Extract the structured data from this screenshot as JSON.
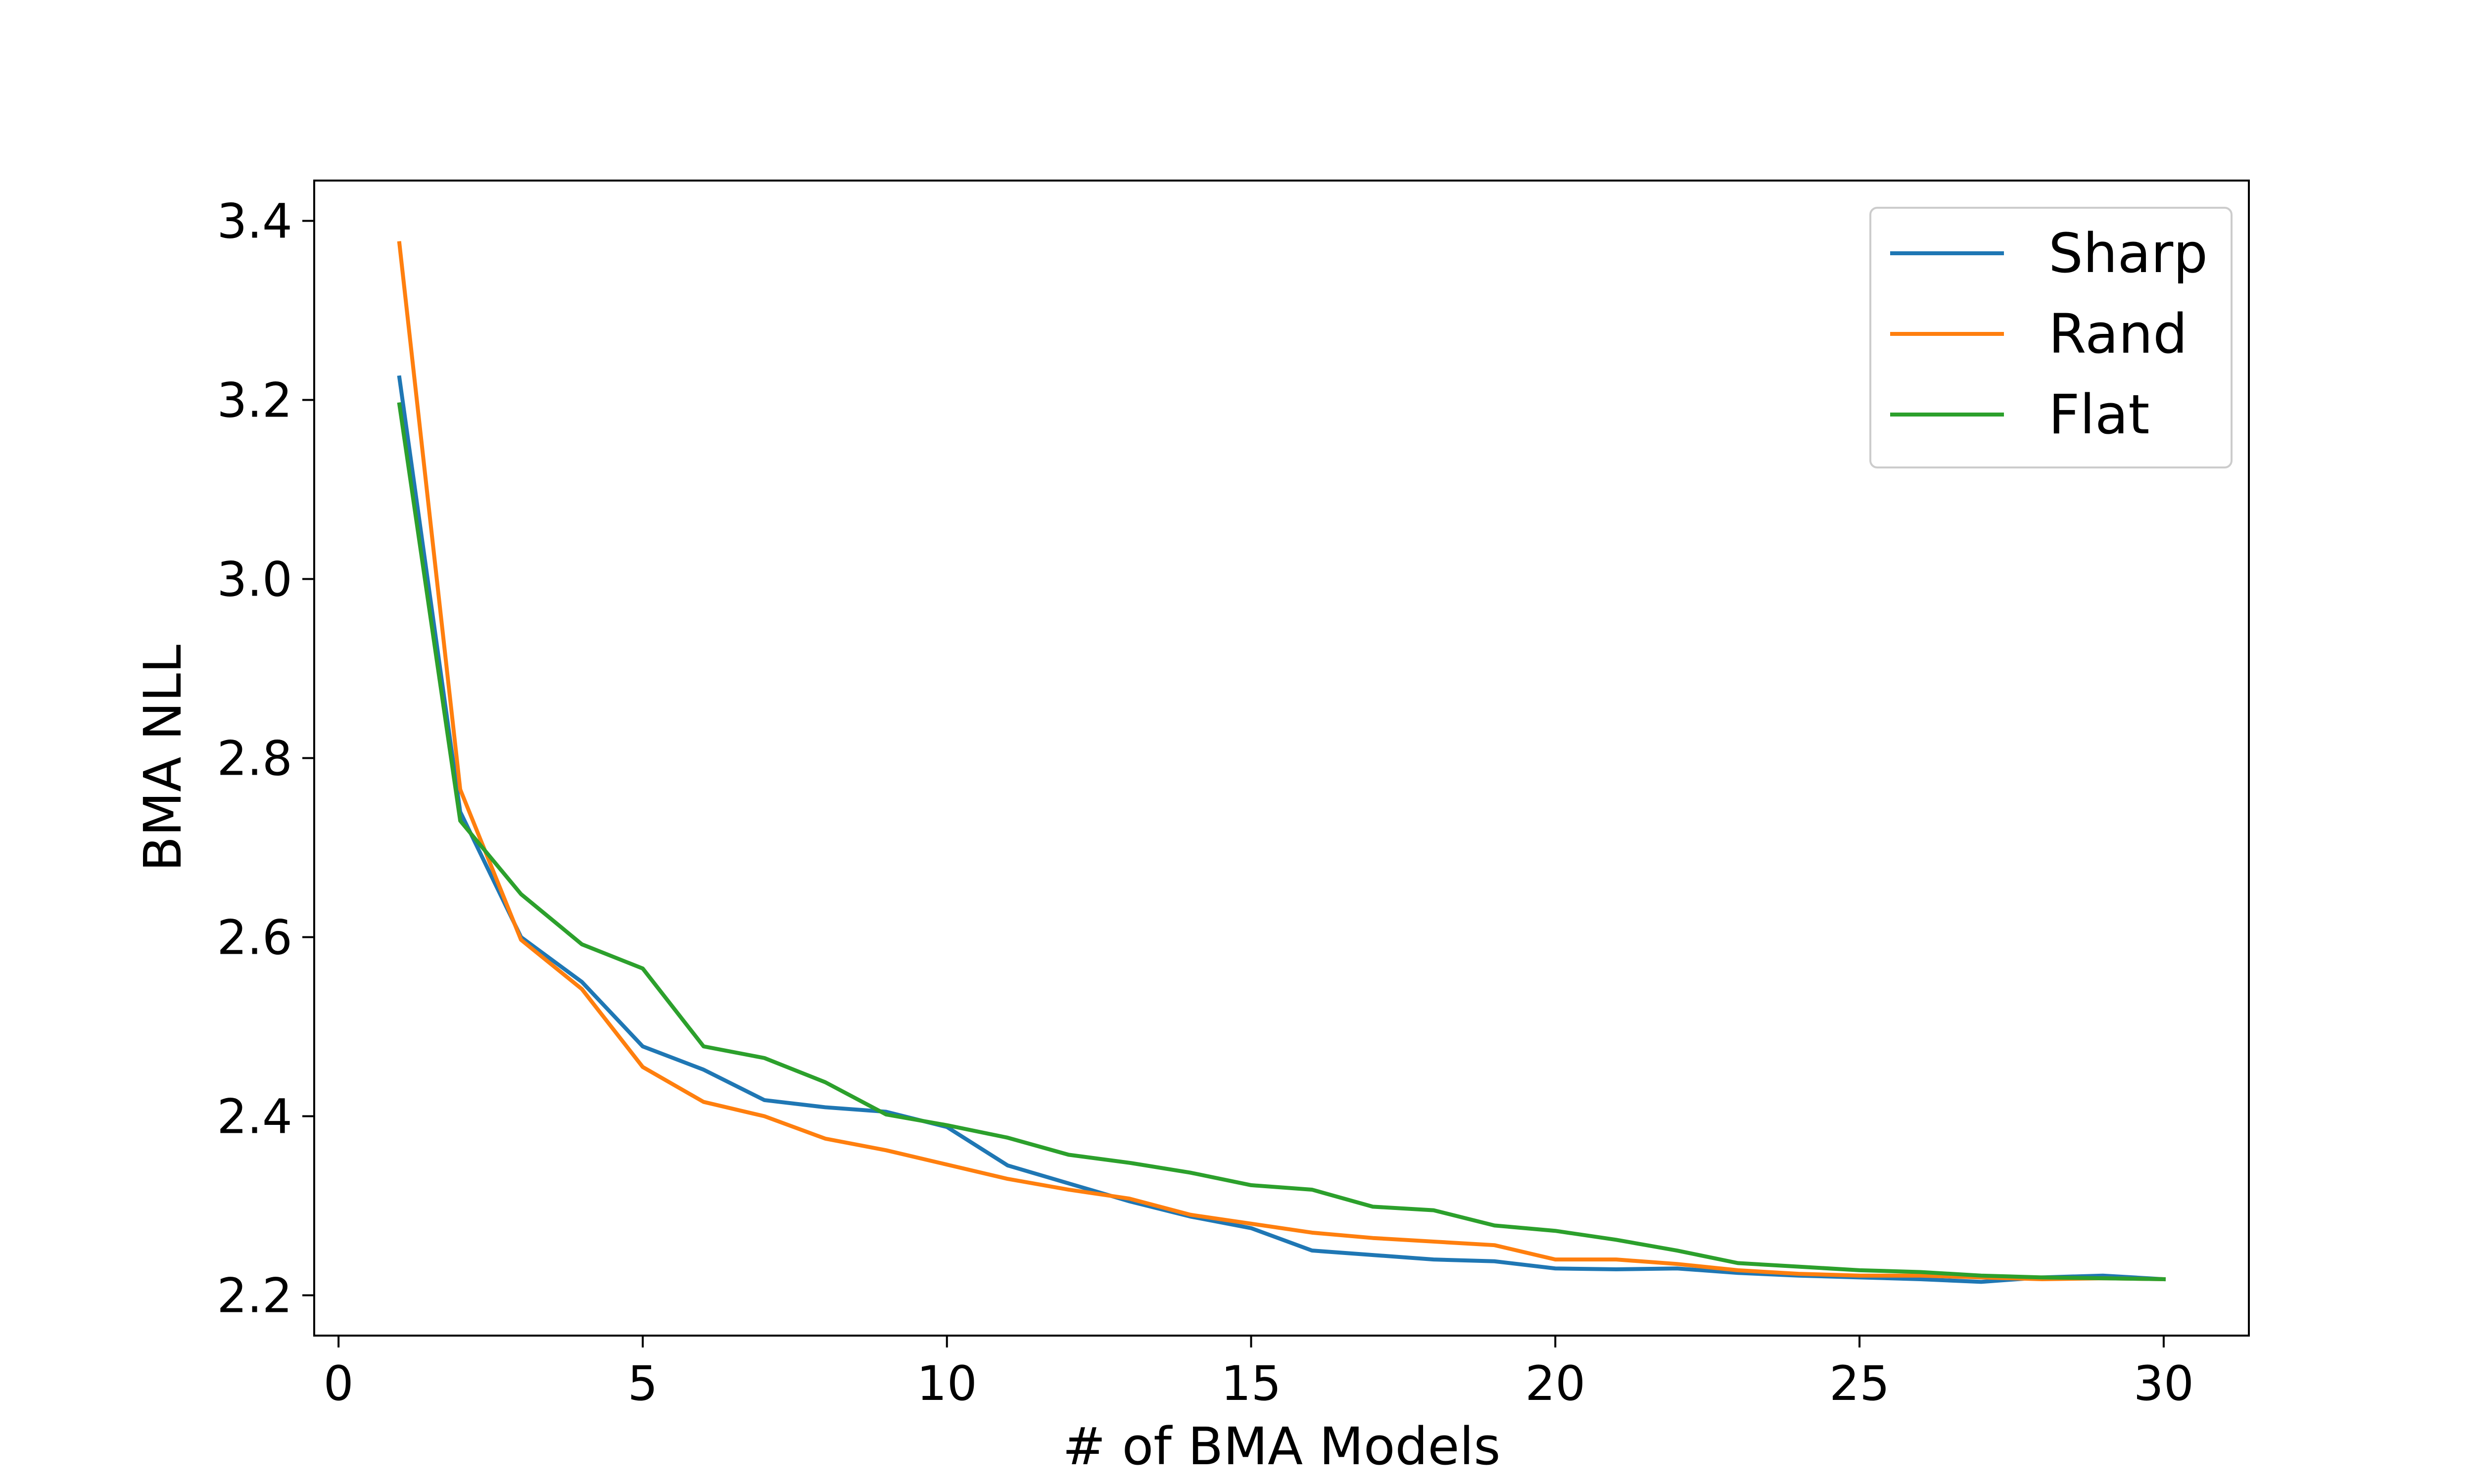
{
  "chart_data": {
    "type": "line",
    "title": "",
    "xlabel": "# of BMA Models",
    "ylabel": "BMA NLL",
    "xlim": [
      -0.4,
      31.4
    ],
    "ylim": [
      2.155,
      3.445
    ],
    "xticks": [
      0,
      5,
      10,
      15,
      20,
      25,
      30
    ],
    "yticks": [
      2.2,
      2.4,
      2.6,
      2.8,
      3.0,
      3.2,
      3.4
    ],
    "xtick_labels": [
      "0",
      "5",
      "10",
      "15",
      "20",
      "25",
      "30"
    ],
    "ytick_labels": [
      "2.2",
      "2.4",
      "2.6",
      "2.8",
      "3.0",
      "3.2",
      "3.4"
    ],
    "grid": false,
    "legend": "top-right",
    "x": [
      1,
      2,
      3,
      4,
      5,
      6,
      7,
      8,
      9,
      10,
      11,
      12,
      13,
      14,
      15,
      16,
      17,
      18,
      19,
      20,
      21,
      22,
      23,
      24,
      25,
      26,
      27,
      28,
      29,
      30
    ],
    "series": [
      {
        "name": "Sharp",
        "color": "#1f77b4",
        "values": [
          3.225,
          2.74,
          2.6,
          2.55,
          2.478,
          2.452,
          2.418,
          2.41,
          2.405,
          2.388,
          2.345,
          2.325,
          2.305,
          2.288,
          2.275,
          2.25,
          2.245,
          2.24,
          2.238,
          2.23,
          2.229,
          2.23,
          2.225,
          2.222,
          2.22,
          2.218,
          2.215,
          2.22,
          2.222,
          2.218
        ]
      },
      {
        "name": "Rand",
        "color": "#ff7f0e",
        "values": [
          3.375,
          2.765,
          2.597,
          2.542,
          2.455,
          2.416,
          2.4,
          2.375,
          2.362,
          2.346,
          2.33,
          2.318,
          2.308,
          2.29,
          2.28,
          2.27,
          2.264,
          2.26,
          2.256,
          2.24,
          2.24,
          2.235,
          2.228,
          2.224,
          2.222,
          2.222,
          2.22,
          2.218,
          2.219,
          2.218
        ]
      },
      {
        "name": "Flat",
        "color": "#2ca02c",
        "values": [
          3.195,
          2.73,
          2.648,
          2.592,
          2.565,
          2.478,
          2.465,
          2.438,
          2.402,
          2.39,
          2.376,
          2.357,
          2.348,
          2.337,
          2.323,
          2.318,
          2.299,
          2.295,
          2.278,
          2.272,
          2.262,
          2.25,
          2.236,
          2.232,
          2.228,
          2.226,
          2.222,
          2.22,
          2.219,
          2.218
        ]
      }
    ]
  }
}
